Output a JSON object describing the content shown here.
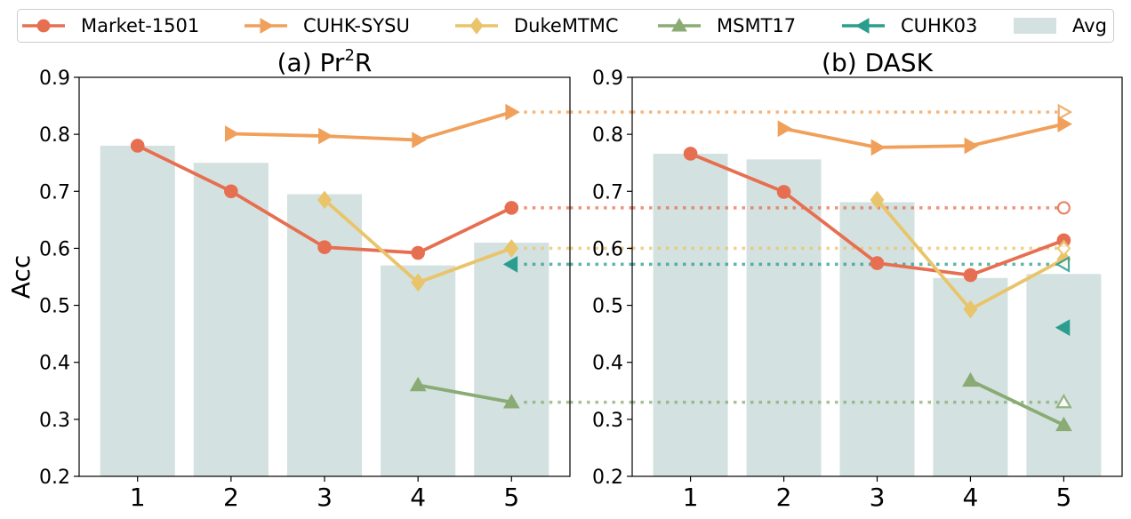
{
  "chart_data": [
    {
      "type": "line",
      "title_prefix": "(a) Pr",
      "title_sup": "2",
      "title_suffix": "R",
      "ylabel": "Acc",
      "xlabel": "",
      "ylim": [
        0.2,
        0.9
      ],
      "xticks": [
        "1",
        "2",
        "3",
        "4",
        "5"
      ],
      "yticks": [
        "0.2",
        "0.3",
        "0.4",
        "0.5",
        "0.6",
        "0.7",
        "0.8",
        "0.9"
      ],
      "avg_bars": [
        0.78,
        0.75,
        0.695,
        0.57,
        0.61
      ],
      "series": [
        {
          "name": "Market-1501",
          "x": [
            1,
            2,
            3,
            4,
            5
          ],
          "values": [
            0.78,
            0.7,
            0.602,
            0.592,
            0.671
          ]
        },
        {
          "name": "CUHK-SYSU",
          "x": [
            2,
            3,
            4,
            5
          ],
          "values": [
            0.801,
            0.797,
            0.79,
            0.839
          ]
        },
        {
          "name": "DukeMTMC",
          "x": [
            3,
            4,
            5
          ],
          "values": [
            0.685,
            0.54,
            0.6
          ]
        },
        {
          "name": "MSMT17",
          "x": [
            4,
            5
          ],
          "values": [
            0.36,
            0.33
          ]
        },
        {
          "name": "CUHK03",
          "x": [
            5
          ],
          "values": [
            0.572
          ]
        }
      ],
      "reference_lines": [
        {
          "series": "CUHK-SYSU",
          "value": 0.839
        },
        {
          "series": "Market-1501",
          "value": 0.671
        },
        {
          "series": "DukeMTMC",
          "value": 0.6
        },
        {
          "series": "CUHK03",
          "value": 0.572
        },
        {
          "series": "MSMT17",
          "value": 0.33
        }
      ]
    },
    {
      "type": "line",
      "title_prefix": "(b) DASK",
      "title_sup": "",
      "title_suffix": "",
      "ylabel": "",
      "xlabel": "",
      "ylim": [
        0.2,
        0.9
      ],
      "xticks": [
        "1",
        "2",
        "3",
        "4",
        "5"
      ],
      "yticks": [
        "0.2",
        "0.3",
        "0.4",
        "0.5",
        "0.6",
        "0.7",
        "0.8",
        "0.9"
      ],
      "avg_bars": [
        0.766,
        0.756,
        0.681,
        0.548,
        0.555
      ],
      "series": [
        {
          "name": "Market-1501",
          "x": [
            1,
            2,
            3,
            4,
            5
          ],
          "values": [
            0.766,
            0.699,
            0.574,
            0.553,
            0.614
          ]
        },
        {
          "name": "CUHK-SYSU",
          "x": [
            2,
            3,
            4,
            5
          ],
          "values": [
            0.81,
            0.777,
            0.78,
            0.818
          ]
        },
        {
          "name": "DukeMTMC",
          "x": [
            3,
            4,
            5
          ],
          "values": [
            0.685,
            0.493,
            0.581
          ]
        },
        {
          "name": "MSMT17",
          "x": [
            4,
            5
          ],
          "values": [
            0.368,
            0.29
          ]
        },
        {
          "name": "CUHK03",
          "x": [
            5
          ],
          "values": [
            0.461
          ]
        }
      ],
      "reference_lines": [
        {
          "series": "CUHK-SYSU",
          "value": 0.839
        },
        {
          "series": "Market-1501",
          "value": 0.671
        },
        {
          "series": "DukeMTMC",
          "value": 0.6
        },
        {
          "series": "CUHK03",
          "value": 0.572
        },
        {
          "series": "MSMT17",
          "value": 0.33
        }
      ],
      "reference_markers": [
        {
          "series": "CUHK-SYSU",
          "x": 5,
          "value": 0.839
        },
        {
          "series": "Market-1501",
          "x": 5,
          "value": 0.671
        },
        {
          "series": "DukeMTMC",
          "x": 5,
          "value": 0.6
        },
        {
          "series": "CUHK03",
          "x": 5,
          "value": 0.572
        },
        {
          "series": "MSMT17",
          "x": 5,
          "value": 0.33
        }
      ]
    }
  ],
  "legend": {
    "placement": "top",
    "entries": [
      {
        "name": "Market-1501",
        "marker": "circle",
        "color": "#e76f51"
      },
      {
        "name": "CUHK-SYSU",
        "marker": "triangle-right",
        "color": "#f0a05a"
      },
      {
        "name": "DukeMTMC",
        "marker": "diamond",
        "color": "#e9c46a"
      },
      {
        "name": "MSMT17",
        "marker": "triangle-up",
        "color": "#8aab74"
      },
      {
        "name": "CUHK03",
        "marker": "triangle-left",
        "color": "#2a9d8f"
      },
      {
        "name": "Avg",
        "marker": "bar",
        "color": "#d3e2e0"
      }
    ]
  }
}
